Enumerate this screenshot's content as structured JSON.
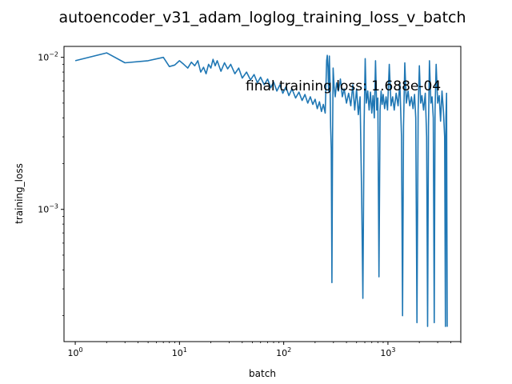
{
  "chart_data": {
    "type": "line",
    "title": "autoencoder_v31_adam_loglog_training_loss_v_batch",
    "xlabel": "batch",
    "ylabel": "training_loss",
    "xscale": "log",
    "yscale": "log",
    "xlim": [
      0.78,
      5000
    ],
    "ylim": [
      0.000135,
      0.0118
    ],
    "grid": false,
    "line_color": "#1f77b4",
    "x_ticks": [
      {
        "value": 1,
        "base": "10",
        "exp": "0"
      },
      {
        "value": 10,
        "base": "10",
        "exp": "1"
      },
      {
        "value": 100,
        "base": "10",
        "exp": "2"
      },
      {
        "value": 1000,
        "base": "10",
        "exp": "3"
      }
    ],
    "y_ticks": [
      {
        "value": 0.001,
        "base": "10",
        "exp": "−3"
      },
      {
        "value": 0.01,
        "base": "10",
        "exp": "−2"
      }
    ],
    "annotation": "final training loss: 1.688e-04",
    "series": [
      {
        "points": [
          [
            1,
            0.0095
          ],
          [
            2,
            0.0107
          ],
          [
            3,
            0.0092
          ],
          [
            5,
            0.0095
          ],
          [
            7,
            0.01
          ],
          [
            8,
            0.0087
          ],
          [
            9,
            0.0089
          ],
          [
            10,
            0.0095
          ],
          [
            11,
            0.009
          ],
          [
            12,
            0.0085
          ],
          [
            13,
            0.0093
          ],
          [
            14,
            0.0088
          ],
          [
            15,
            0.0095
          ],
          [
            16,
            0.008
          ],
          [
            17,
            0.0086
          ],
          [
            18,
            0.0078
          ],
          [
            19,
            0.009
          ],
          [
            20,
            0.0085
          ],
          [
            21,
            0.0097
          ],
          [
            22,
            0.0088
          ],
          [
            23,
            0.0095
          ],
          [
            25,
            0.0081
          ],
          [
            27,
            0.0092
          ],
          [
            29,
            0.0084
          ],
          [
            31,
            0.009
          ],
          [
            34,
            0.0078
          ],
          [
            37,
            0.0085
          ],
          [
            40,
            0.0073
          ],
          [
            44,
            0.008
          ],
          [
            48,
            0.0071
          ],
          [
            52,
            0.0077
          ],
          [
            56,
            0.0068
          ],
          [
            60,
            0.0074
          ],
          [
            65,
            0.0066
          ],
          [
            70,
            0.0072
          ],
          [
            75,
            0.0063
          ],
          [
            80,
            0.0069
          ],
          [
            86,
            0.006
          ],
          [
            92,
            0.0066
          ],
          [
            98,
            0.0058
          ],
          [
            105,
            0.0064
          ],
          [
            112,
            0.0056
          ],
          [
            120,
            0.0062
          ],
          [
            130,
            0.0054
          ],
          [
            140,
            0.0059
          ],
          [
            150,
            0.0052
          ],
          [
            160,
            0.0057
          ],
          [
            170,
            0.005
          ],
          [
            180,
            0.0055
          ],
          [
            190,
            0.0049
          ],
          [
            200,
            0.0053
          ],
          [
            210,
            0.0046
          ],
          [
            220,
            0.0051
          ],
          [
            230,
            0.0044
          ],
          [
            240,
            0.0049
          ],
          [
            250,
            0.0043
          ],
          [
            258,
            0.0095
          ],
          [
            262,
            0.0103
          ],
          [
            266,
            0.0085
          ],
          [
            270,
            0.006
          ],
          [
            274,
            0.0102
          ],
          [
            278,
            0.007
          ],
          [
            282,
            0.0035
          ],
          [
            286,
            0.0025
          ],
          [
            290,
            0.00033
          ],
          [
            294,
            0.0029
          ],
          [
            298,
            0.0085
          ],
          [
            304,
            0.0065
          ],
          [
            312,
            0.0055
          ],
          [
            322,
            0.0068
          ],
          [
            335,
            0.006
          ],
          [
            350,
            0.0072
          ],
          [
            365,
            0.0055
          ],
          [
            380,
            0.0062
          ],
          [
            400,
            0.005
          ],
          [
            420,
            0.0058
          ],
          [
            440,
            0.0048
          ],
          [
            460,
            0.0066
          ],
          [
            480,
            0.0045
          ],
          [
            500,
            0.0062
          ],
          [
            520,
            0.0042
          ],
          [
            540,
            0.0055
          ],
          [
            560,
            0.0012
          ],
          [
            575,
            0.00026
          ],
          [
            590,
            0.0035
          ],
          [
            605,
            0.0098
          ],
          [
            620,
            0.005
          ],
          [
            640,
            0.006
          ],
          [
            660,
            0.0045
          ],
          [
            680,
            0.0059
          ],
          [
            700,
            0.0043
          ],
          [
            720,
            0.0056
          ],
          [
            740,
            0.004
          ],
          [
            760,
            0.0095
          ],
          [
            780,
            0.0045
          ],
          [
            800,
            0.0054
          ],
          [
            820,
            0.00036
          ],
          [
            840,
            0.0045
          ],
          [
            860,
            0.006
          ],
          [
            880,
            0.0049
          ],
          [
            900,
            0.0057
          ],
          [
            930,
            0.0046
          ],
          [
            960,
            0.0055
          ],
          [
            990,
            0.0045
          ],
          [
            1030,
            0.009
          ],
          [
            1070,
            0.0048
          ],
          [
            1110,
            0.0055
          ],
          [
            1150,
            0.0045
          ],
          [
            1200,
            0.0058
          ],
          [
            1250,
            0.0048
          ],
          [
            1300,
            0.0068
          ],
          [
            1350,
            0.003
          ],
          [
            1380,
            0.0002
          ],
          [
            1410,
            0.0035
          ],
          [
            1450,
            0.0092
          ],
          [
            1500,
            0.005
          ],
          [
            1560,
            0.006
          ],
          [
            1620,
            0.0048
          ],
          [
            1680,
            0.0055
          ],
          [
            1740,
            0.0046
          ],
          [
            1800,
            0.0057
          ],
          [
            1850,
            0.004
          ],
          [
            1900,
            0.00018
          ],
          [
            1950,
            0.0045
          ],
          [
            2000,
            0.0088
          ],
          [
            2060,
            0.005
          ],
          [
            2120,
            0.0056
          ],
          [
            2200,
            0.0045
          ],
          [
            2280,
            0.0058
          ],
          [
            2350,
            0.003
          ],
          [
            2400,
            0.00017
          ],
          [
            2450,
            0.0035
          ],
          [
            2500,
            0.0095
          ],
          [
            2580,
            0.005
          ],
          [
            2650,
            0.0055
          ],
          [
            2720,
            0.004
          ],
          [
            2780,
            0.00018
          ],
          [
            2830,
            0.0045
          ],
          [
            2900,
            0.009
          ],
          [
            3000,
            0.005
          ],
          [
            3100,
            0.0056
          ],
          [
            3200,
            0.0038
          ],
          [
            3300,
            0.006
          ],
          [
            3400,
            0.0045
          ],
          [
            3500,
            0.003
          ],
          [
            3560,
            0.00017
          ],
          [
            3600,
            0.004
          ],
          [
            3650,
            0.0058
          ],
          [
            3700,
            0.000169
          ]
        ]
      }
    ]
  }
}
